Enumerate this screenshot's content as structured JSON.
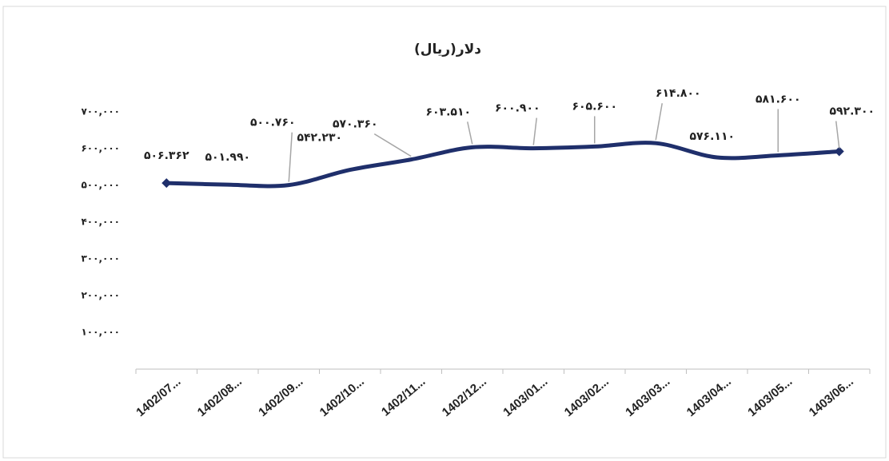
{
  "chart_data": {
    "type": "line",
    "title": "دلار(ریال)",
    "categories": [
      "1402/07...",
      "1402/08...",
      "1402/09...",
      "1402/10...",
      "1402/11...",
      "1402/12...",
      "1403/01...",
      "1403/02...",
      "1403/03...",
      "1403/04...",
      "1403/05...",
      "1403/06..."
    ],
    "series": [
      {
        "name": "دلار(ریال)",
        "color": "#1f2f6b",
        "values": [
          506362,
          501990,
          500760,
          542230,
          570360,
          603510,
          600900,
          605600,
          614800,
          576110,
          581600,
          592300
        ],
        "value_labels": [
          "۵۰۶.۳۶۲",
          "۵۰۱.۹۹۰",
          "۵۰۰.۷۶۰",
          "۵۴۲.۲۳۰",
          "۵۷۰.۳۶۰",
          "۶۰۳.۵۱۰",
          "۶۰۰.۹۰۰",
          "۶۰۵.۶۰۰",
          "۶۱۴.۸۰۰",
          "۵۷۶.۱۱۰",
          "۵۸۱.۶۰۰",
          "۵۹۲.۳۰۰"
        ]
      }
    ],
    "ylim": [
      0,
      700000
    ],
    "yticks": [
      {
        "value": 100000,
        "label": "۱۰۰,۰۰۰"
      },
      {
        "value": 200000,
        "label": "۲۰۰,۰۰۰"
      },
      {
        "value": 300000,
        "label": "۳۰۰,۰۰۰"
      },
      {
        "value": 400000,
        "label": "۴۰۰,۰۰۰"
      },
      {
        "value": 500000,
        "label": "۵۰۰,۰۰۰"
      },
      {
        "value": 600000,
        "label": "۶۰۰,۰۰۰"
      },
      {
        "value": 700000,
        "label": "۷۰۰,۰۰۰"
      }
    ],
    "grid": false
  }
}
